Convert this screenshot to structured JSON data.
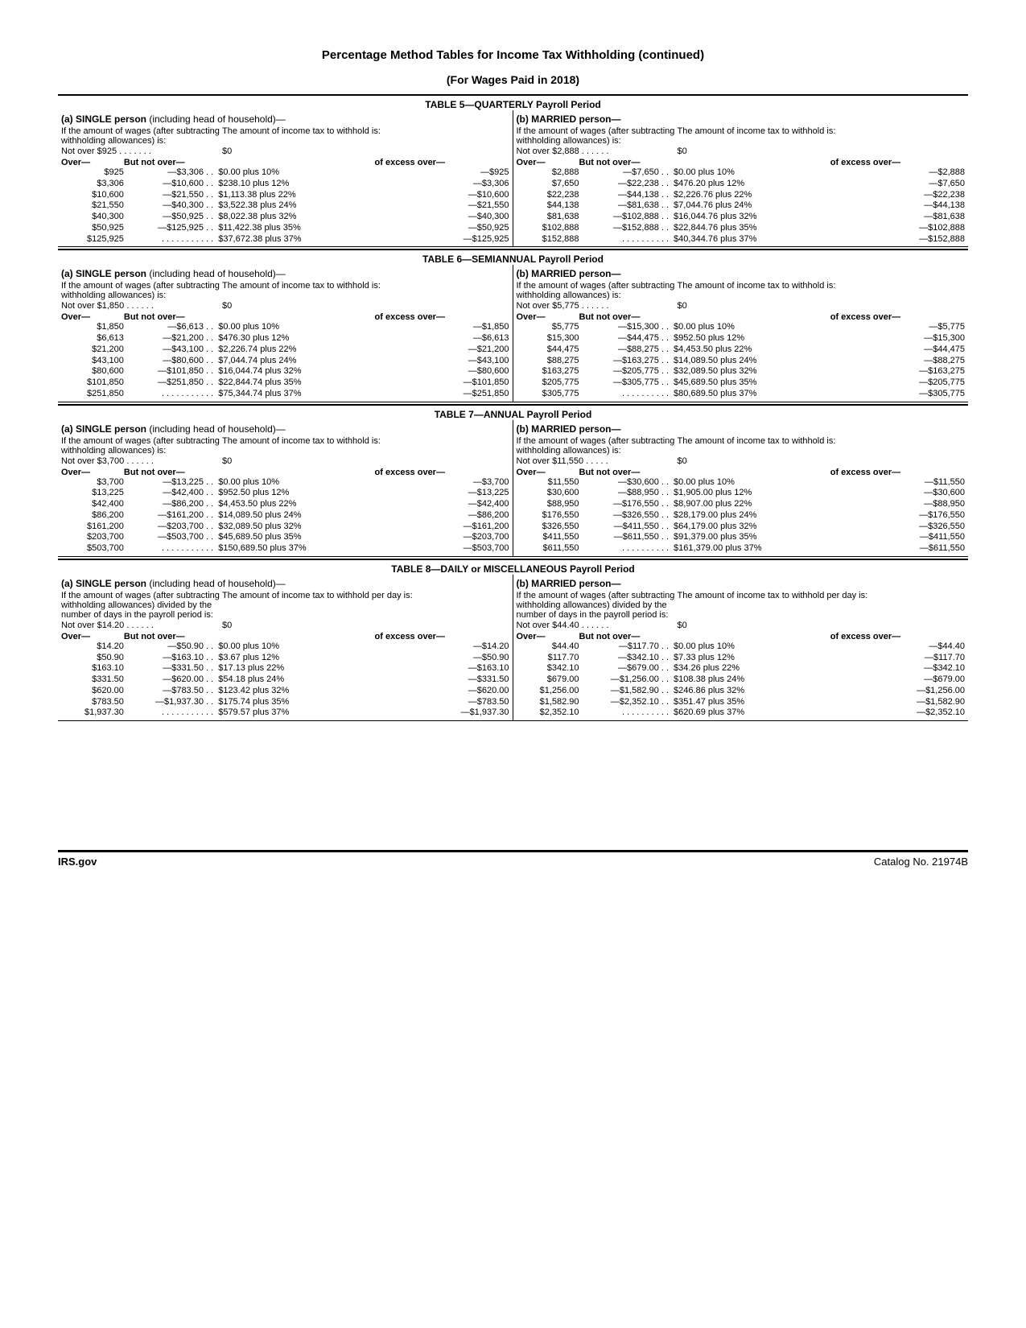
{
  "page_title": "Percentage Method Tables for Income Tax Withholding (continued)",
  "page_subtitle": "(For Wages Paid in 2018)",
  "footer_site": "IRS.gov",
  "footer_catalog": "Catalog No. 21974B",
  "col_headers": {
    "over": "Over—",
    "notover": "But not over—",
    "excess": "of excess over—"
  },
  "single_heading_prefix": "(a) SINGLE person",
  "single_heading_suffix": " (including head of household)—",
  "married_heading": "(b) MARRIED person—",
  "intro_label_std": "If the amount of wages (after subtracting withholding allowances) is:",
  "intro_label_daily": "If the amount of wages (after subtracting withholding allowances) divided by the number of days in the payroll period is:",
  "intro_tax_std": "The amount of income tax to withhold is:",
  "intro_tax_daily": "The amount of income tax to withhold per day is:",
  "tables": [
    {
      "caption": "TABLE 5—QUARTERLY Payroll Period",
      "daily": false,
      "single": {
        "notover": "Not over $925 . . . . . . .",
        "rows": [
          {
            "o": "$925",
            "n": "—$3,306 . .",
            "t": "$0.00 plus 10%",
            "e": "—$925"
          },
          {
            "o": "$3,306",
            "n": "—$10,600 . .",
            "t": "$238.10 plus 12%",
            "e": "—$3,306"
          },
          {
            "o": "$10,600",
            "n": "—$21,550 . .",
            "t": "$1,113.38 plus 22%",
            "e": "—$10,600"
          },
          {
            "o": "$21,550",
            "n": "—$40,300 . .",
            "t": "$3,522.38 plus 24%",
            "e": "—$21,550"
          },
          {
            "o": "$40,300",
            "n": "—$50,925 . .",
            "t": "$8,022.38 plus 32%",
            "e": "—$40,300"
          },
          {
            "o": "$50,925",
            "n": "—$125,925 . .",
            "t": "$11,422.38 plus 35%",
            "e": "—$50,925"
          },
          {
            "o": "$125,925",
            "n": ". . . . . . . . . . .",
            "t": "$37,672.38 plus 37%",
            "e": "—$125,925"
          }
        ]
      },
      "married": {
        "notover": "Not over $2,888 . . . . . .",
        "rows": [
          {
            "o": "$2,888",
            "n": "—$7,650 . .",
            "t": "$0.00 plus 10%",
            "e": "—$2,888"
          },
          {
            "o": "$7,650",
            "n": "—$22,238 . .",
            "t": "$476.20 plus 12%",
            "e": "—$7,650"
          },
          {
            "o": "$22,238",
            "n": "—$44,138 . .",
            "t": "$2,226.76 plus 22%",
            "e": "—$22,238"
          },
          {
            "o": "$44,138",
            "n": "—$81,638 . .",
            "t": "$7,044.76 plus 24%",
            "e": "—$44,138"
          },
          {
            "o": "$81,638",
            "n": "—$102,888 . .",
            "t": "$16,044.76 plus 32%",
            "e": "—$81,638"
          },
          {
            "o": "$102,888",
            "n": "—$152,888 . .",
            "t": "$22,844.76 plus 35%",
            "e": "—$102,888"
          },
          {
            "o": "$152,888",
            "n": ". . . . . . . . . .",
            "t": "$40,344.76 plus 37%",
            "e": "—$152,888"
          }
        ]
      }
    },
    {
      "caption": "TABLE 6—SEMIANNUAL Payroll Period",
      "daily": false,
      "single": {
        "notover": "Not over $1,850 . . . . . .",
        "rows": [
          {
            "o": "$1,850",
            "n": "—$6,613 . .",
            "t": "$0.00 plus 10%",
            "e": "—$1,850"
          },
          {
            "o": "$6,613",
            "n": "—$21,200 . .",
            "t": "$476.30 plus 12%",
            "e": "—$6,613"
          },
          {
            "o": "$21,200",
            "n": "—$43,100 . .",
            "t": "$2,226.74 plus 22%",
            "e": "—$21,200"
          },
          {
            "o": "$43,100",
            "n": "—$80,600 . .",
            "t": "$7,044.74 plus 24%",
            "e": "—$43,100"
          },
          {
            "o": "$80,600",
            "n": "—$101,850 . .",
            "t": "$16,044.74 plus 32%",
            "e": "—$80,600"
          },
          {
            "o": "$101,850",
            "n": "—$251,850 . .",
            "t": "$22,844.74 plus 35%",
            "e": "—$101,850"
          },
          {
            "o": "$251,850",
            "n": ". . . . . . . . . . .",
            "t": "$75,344.74 plus 37%",
            "e": "—$251,850"
          }
        ]
      },
      "married": {
        "notover": "Not over $5,775 . . . . . .",
        "rows": [
          {
            "o": "$5,775",
            "n": "—$15,300 . .",
            "t": "$0.00 plus 10%",
            "e": "—$5,775"
          },
          {
            "o": "$15,300",
            "n": "—$44,475 . .",
            "t": "$952.50 plus 12%",
            "e": "—$15,300"
          },
          {
            "o": "$44,475",
            "n": "—$88,275 . .",
            "t": "$4,453.50 plus 22%",
            "e": "—$44,475"
          },
          {
            "o": "$88,275",
            "n": "—$163,275 . .",
            "t": "$14,089.50 plus 24%",
            "e": "—$88,275"
          },
          {
            "o": "$163,275",
            "n": "—$205,775 . .",
            "t": "$32,089.50 plus 32%",
            "e": "—$163,275"
          },
          {
            "o": "$205,775",
            "n": "—$305,775 . .",
            "t": "$45,689.50 plus 35%",
            "e": "—$205,775"
          },
          {
            "o": "$305,775",
            "n": ". . . . . . . . . .",
            "t": "$80,689.50 plus 37%",
            "e": "—$305,775"
          }
        ]
      }
    },
    {
      "caption": "TABLE 7—ANNUAL Payroll Period",
      "daily": false,
      "single": {
        "notover": "Not over $3,700 . . . . . .",
        "rows": [
          {
            "o": "$3,700",
            "n": "—$13,225 . .",
            "t": "$0.00 plus 10%",
            "e": "—$3,700"
          },
          {
            "o": "$13,225",
            "n": "—$42,400 . .",
            "t": "$952.50 plus 12%",
            "e": "—$13,225"
          },
          {
            "o": "$42,400",
            "n": "—$86,200 . .",
            "t": "$4,453.50 plus 22%",
            "e": "—$42,400"
          },
          {
            "o": "$86,200",
            "n": "—$161,200 . .",
            "t": "$14,089.50 plus 24%",
            "e": "—$86,200"
          },
          {
            "o": "$161,200",
            "n": "—$203,700 . .",
            "t": "$32,089.50 plus 32%",
            "e": "—$161,200"
          },
          {
            "o": "$203,700",
            "n": "—$503,700 . .",
            "t": "$45,689.50 plus 35%",
            "e": "—$203,700"
          },
          {
            "o": "$503,700",
            "n": ". . . . . . . . . . .",
            "t": "$150,689.50 plus 37%",
            "e": "—$503,700"
          }
        ]
      },
      "married": {
        "notover": "Not over $11,550 . . . . .",
        "rows": [
          {
            "o": "$11,550",
            "n": "—$30,600 . .",
            "t": "$0.00 plus 10%",
            "e": "—$11,550"
          },
          {
            "o": "$30,600",
            "n": "—$88,950 . .",
            "t": "$1,905.00 plus 12%",
            "e": "—$30,600"
          },
          {
            "o": "$88,950",
            "n": "—$176,550 . .",
            "t": "$8,907.00 plus 22%",
            "e": "—$88,950"
          },
          {
            "o": "$176,550",
            "n": "—$326,550 . .",
            "t": "$28,179.00 plus 24%",
            "e": "—$176,550"
          },
          {
            "o": "$326,550",
            "n": "—$411,550 . .",
            "t": "$64,179.00 plus 32%",
            "e": "—$326,550"
          },
          {
            "o": "$411,550",
            "n": "—$611,550 . .",
            "t": "$91,379.00 plus 35%",
            "e": "—$411,550"
          },
          {
            "o": "$611,550",
            "n": ". . . . . . . . . .",
            "t": "$161,379.00 plus 37%",
            "e": "—$611,550"
          }
        ]
      }
    },
    {
      "caption": "TABLE 8—DAILY or MISCELLANEOUS Payroll Period",
      "daily": true,
      "single": {
        "notover": "Not over $14.20 . . . . . .",
        "rows": [
          {
            "o": "$14.20",
            "n": "—$50.90 . .",
            "t": "$0.00 plus 10%",
            "e": "—$14.20"
          },
          {
            "o": "$50.90",
            "n": "—$163.10 . .",
            "t": "$3.67 plus 12%",
            "e": "—$50.90"
          },
          {
            "o": "$163.10",
            "n": "—$331.50 . .",
            "t": "$17.13 plus 22%",
            "e": "—$163.10"
          },
          {
            "o": "$331.50",
            "n": "—$620.00 . .",
            "t": "$54.18 plus 24%",
            "e": "—$331.50"
          },
          {
            "o": "$620.00",
            "n": "—$783.50 . .",
            "t": "$123.42 plus 32%",
            "e": "—$620.00"
          },
          {
            "o": "$783.50",
            "n": "—$1,937.30 . .",
            "t": "$175.74 plus 35%",
            "e": "—$783.50"
          },
          {
            "o": "$1,937.30",
            "n": ". . . . . . . . . . .",
            "t": "$579.57 plus 37%",
            "e": "—$1,937.30"
          }
        ]
      },
      "married": {
        "notover": "Not over $44.40 . . . . . .",
        "rows": [
          {
            "o": "$44.40",
            "n": "—$117.70 . .",
            "t": "$0.00 plus 10%",
            "e": "—$44.40"
          },
          {
            "o": "$117.70",
            "n": "—$342.10 . .",
            "t": "$7.33 plus 12%",
            "e": "—$117.70"
          },
          {
            "o": "$342.10",
            "n": "—$679.00 . .",
            "t": "$34.26 plus 22%",
            "e": "—$342.10"
          },
          {
            "o": "$679.00",
            "n": "—$1,256.00 . .",
            "t": "$108.38 plus 24%",
            "e": "—$679.00"
          },
          {
            "o": "$1,256.00",
            "n": "—$1,582.90 . .",
            "t": "$246.86 plus 32%",
            "e": "—$1,256.00"
          },
          {
            "o": "$1,582.90",
            "n": "—$2,352.10 . .",
            "t": "$351.47 plus 35%",
            "e": "—$1,582.90"
          },
          {
            "o": "$2,352.10",
            "n": ". . . . . . . . . .",
            "t": "$620.69 plus 37%",
            "e": "—$2,352.10"
          }
        ]
      }
    }
  ]
}
